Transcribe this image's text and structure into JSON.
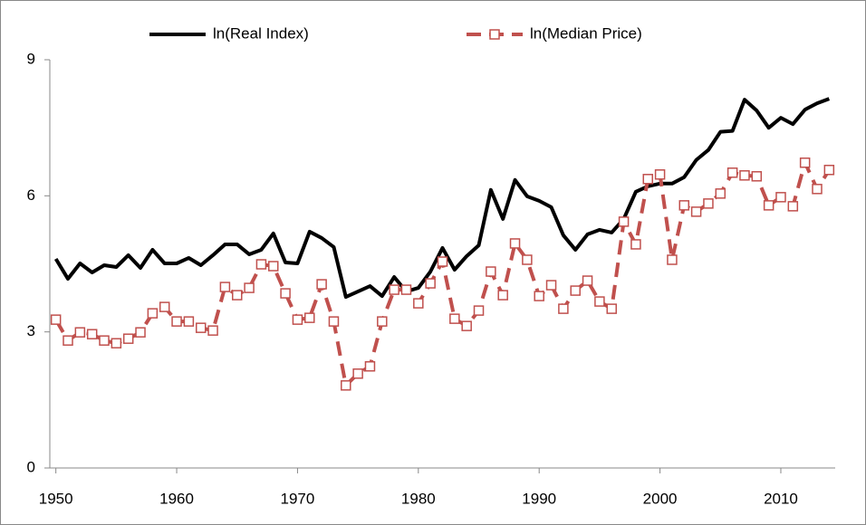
{
  "chart_data": {
    "type": "line",
    "x": [
      1950,
      1951,
      1952,
      1953,
      1954,
      1955,
      1956,
      1957,
      1958,
      1959,
      1960,
      1961,
      1962,
      1963,
      1964,
      1965,
      1966,
      1967,
      1968,
      1969,
      1970,
      1971,
      1972,
      1973,
      1974,
      1975,
      1976,
      1977,
      1978,
      1979,
      1980,
      1981,
      1982,
      1983,
      1984,
      1985,
      1986,
      1987,
      1988,
      1989,
      1990,
      1991,
      1992,
      1993,
      1994,
      1995,
      1996,
      1997,
      1998,
      1999,
      2000,
      2001,
      2002,
      2003,
      2004,
      2005,
      2006,
      2007,
      2008,
      2009,
      2010,
      2011,
      2012,
      2013,
      2014
    ],
    "series": [
      {
        "name": "ln(Real Index)",
        "color": "#000000",
        "style": "solid",
        "values": [
          4.61,
          4.17,
          4.51,
          4.31,
          4.47,
          4.43,
          4.69,
          4.41,
          4.81,
          4.51,
          4.51,
          4.63,
          4.47,
          4.69,
          4.93,
          4.93,
          4.71,
          4.81,
          5.17,
          4.53,
          4.51,
          5.21,
          5.07,
          4.87,
          3.77,
          3.89,
          4.01,
          3.79,
          4.21,
          3.89,
          3.97,
          4.33,
          4.85,
          4.37,
          4.67,
          4.91,
          6.13,
          5.49,
          6.35,
          5.99,
          5.89,
          5.75,
          5.13,
          4.81,
          5.15,
          5.25,
          5.19,
          5.49,
          6.09,
          6.21,
          6.27,
          6.27,
          6.41,
          6.79,
          7.01,
          7.41,
          7.43,
          8.12,
          7.88,
          7.5,
          7.72,
          7.58,
          7.9,
          8.04,
          8.14
        ]
      },
      {
        "name": "ln(Median Price)",
        "color": "#c0504d",
        "style": "dashed",
        "marker": "square",
        "values": [
          3.27,
          2.81,
          2.99,
          2.95,
          2.81,
          2.75,
          2.85,
          2.99,
          3.41,
          3.55,
          3.23,
          3.23,
          3.09,
          3.03,
          3.99,
          3.81,
          3.97,
          4.49,
          4.45,
          3.85,
          3.27,
          3.31,
          4.05,
          3.23,
          1.82,
          2.08,
          2.24,
          3.23,
          3.93,
          3.93,
          3.63,
          4.07,
          4.55,
          3.29,
          3.13,
          3.47,
          4.33,
          3.81,
          4.95,
          4.59,
          3.79,
          4.03,
          3.51,
          3.91,
          4.13,
          3.67,
          3.51,
          5.43,
          4.93,
          6.37,
          6.47,
          4.59,
          5.79,
          5.65,
          5.83,
          6.05,
          6.51,
          6.45,
          6.43,
          5.79,
          5.97,
          5.77,
          6.73,
          6.15,
          6.57
        ]
      }
    ],
    "xlim": [
      1949.5,
      2014.5
    ],
    "xticks": [
      1950,
      1960,
      1970,
      1980,
      1990,
      2000,
      2010
    ],
    "ylim": [
      0,
      9
    ],
    "yticks": [
      0,
      3,
      6,
      9
    ],
    "grid": false,
    "legend": "top"
  }
}
